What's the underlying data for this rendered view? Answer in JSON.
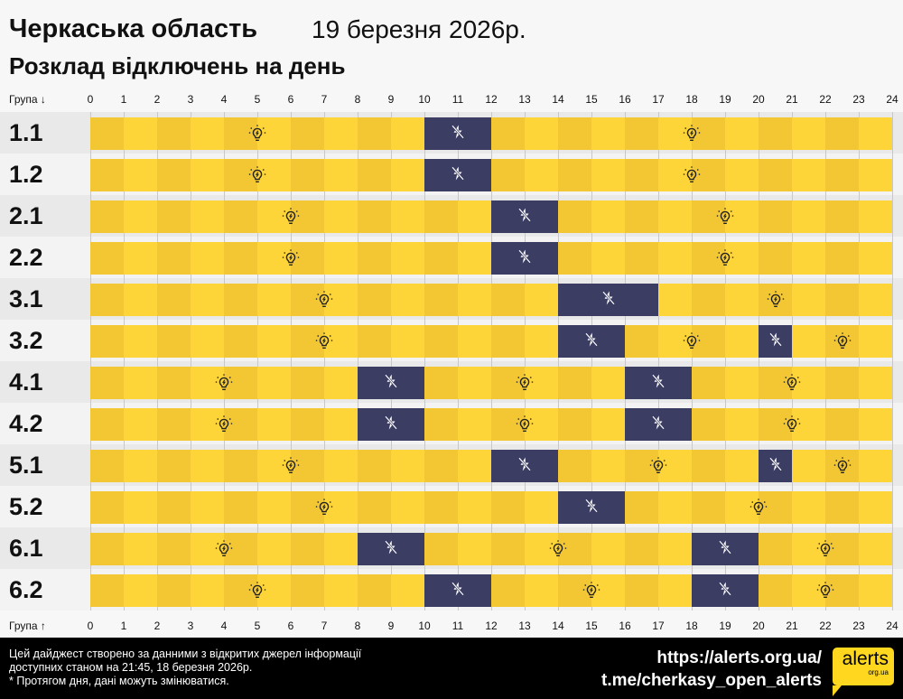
{
  "header": {
    "title": "Черкаська область",
    "date": "19 березня 2026р.",
    "subtitle": "Розклад відключень на день"
  },
  "axis": {
    "top_label": "Група ↓",
    "bottom_label": "Група ↑",
    "ticks": [
      "0",
      "1",
      "2",
      "3",
      "4",
      "5",
      "6",
      "7",
      "8",
      "9",
      "10",
      "11",
      "12",
      "13",
      "14",
      "15",
      "16",
      "17",
      "18",
      "19",
      "20",
      "21",
      "22",
      "23",
      "24"
    ]
  },
  "colors": {
    "power_on_light": "#fdd538",
    "power_on_dark": "#f3c634",
    "power_off": "#3b3d63"
  },
  "icons": {
    "power_on": "lightbulb-icon",
    "power_off": "no-power-lightning-icon"
  },
  "groups": [
    {
      "name": "1.1",
      "outages": [
        [
          10,
          12
        ]
      ]
    },
    {
      "name": "1.2",
      "outages": [
        [
          10,
          12
        ]
      ]
    },
    {
      "name": "2.1",
      "outages": [
        [
          12,
          14
        ]
      ]
    },
    {
      "name": "2.2",
      "outages": [
        [
          12,
          14
        ]
      ]
    },
    {
      "name": "3.1",
      "outages": [
        [
          14,
          17
        ]
      ]
    },
    {
      "name": "3.2",
      "outages": [
        [
          14,
          16
        ],
        [
          20,
          21
        ]
      ]
    },
    {
      "name": "4.1",
      "outages": [
        [
          8,
          10
        ],
        [
          16,
          18
        ]
      ]
    },
    {
      "name": "4.2",
      "outages": [
        [
          8,
          10
        ],
        [
          16,
          18
        ]
      ]
    },
    {
      "name": "5.1",
      "outages": [
        [
          12,
          14
        ],
        [
          20,
          21
        ]
      ]
    },
    {
      "name": "5.2",
      "outages": [
        [
          14,
          16
        ]
      ]
    },
    {
      "name": "6.1",
      "outages": [
        [
          8,
          10
        ],
        [
          18,
          20
        ]
      ]
    },
    {
      "name": "6.2",
      "outages": [
        [
          10,
          12
        ],
        [
          18,
          20
        ]
      ]
    }
  ],
  "footer": {
    "note_line1": "Цей дайджест створено за данними з відкритих джерел інформації",
    "note_line2": "доступних станом на 21:45, 18 березня 2026р.",
    "note_line3": "* Протягом дня, дані можуть змінюватися.",
    "link1": "https://alerts.org.ua/",
    "link2": "t.me/cherkasy_open_alerts",
    "logo_main": "alerts",
    "logo_sub": "org.ua"
  }
}
